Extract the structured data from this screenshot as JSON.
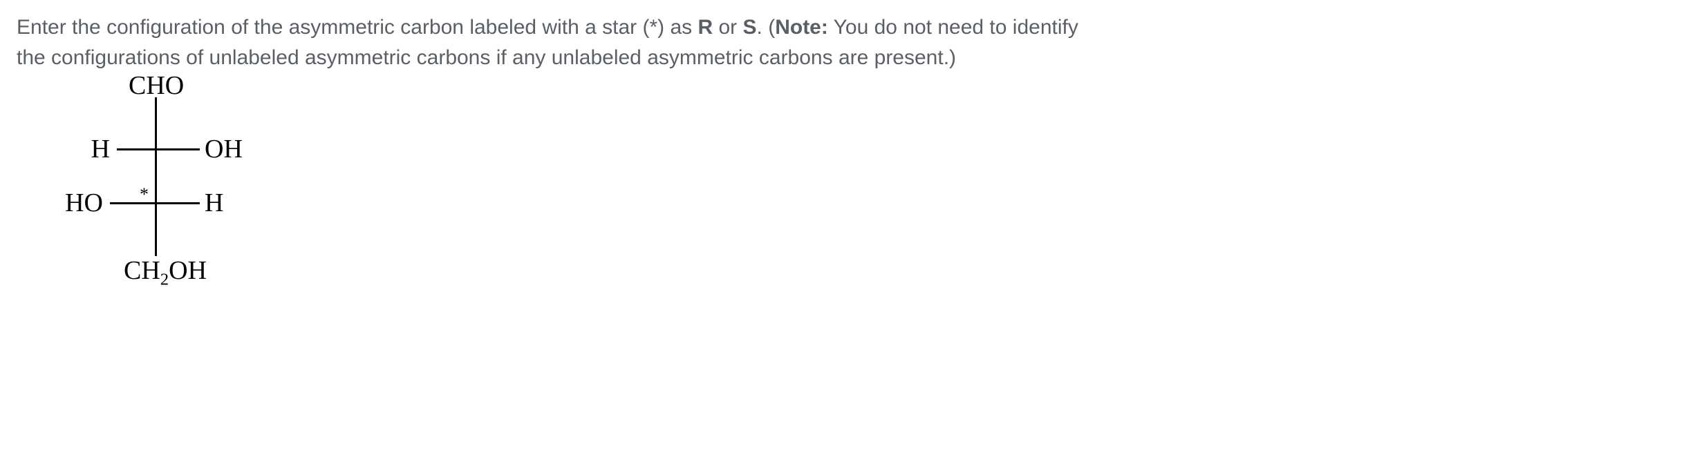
{
  "question": {
    "pre": "Enter the configuration of the asymmetric carbon labeled with a star (*) as ",
    "r": "R",
    "or": " or ",
    "s": "S",
    "post1": ".  (",
    "noteLabel": "Note:",
    "post2": "  You do not need to identify the configurations of unlabeled asymmetric carbons if any unlabeled asymmetric carbons are present.)"
  },
  "fischer": {
    "top": "CHO",
    "row1_left": "H",
    "row1_right": "OH",
    "row2_left": "HO",
    "row2_right": "H",
    "bottom_pre": "CH",
    "bottom_sub": "2",
    "bottom_post": "OH",
    "star": "*"
  }
}
